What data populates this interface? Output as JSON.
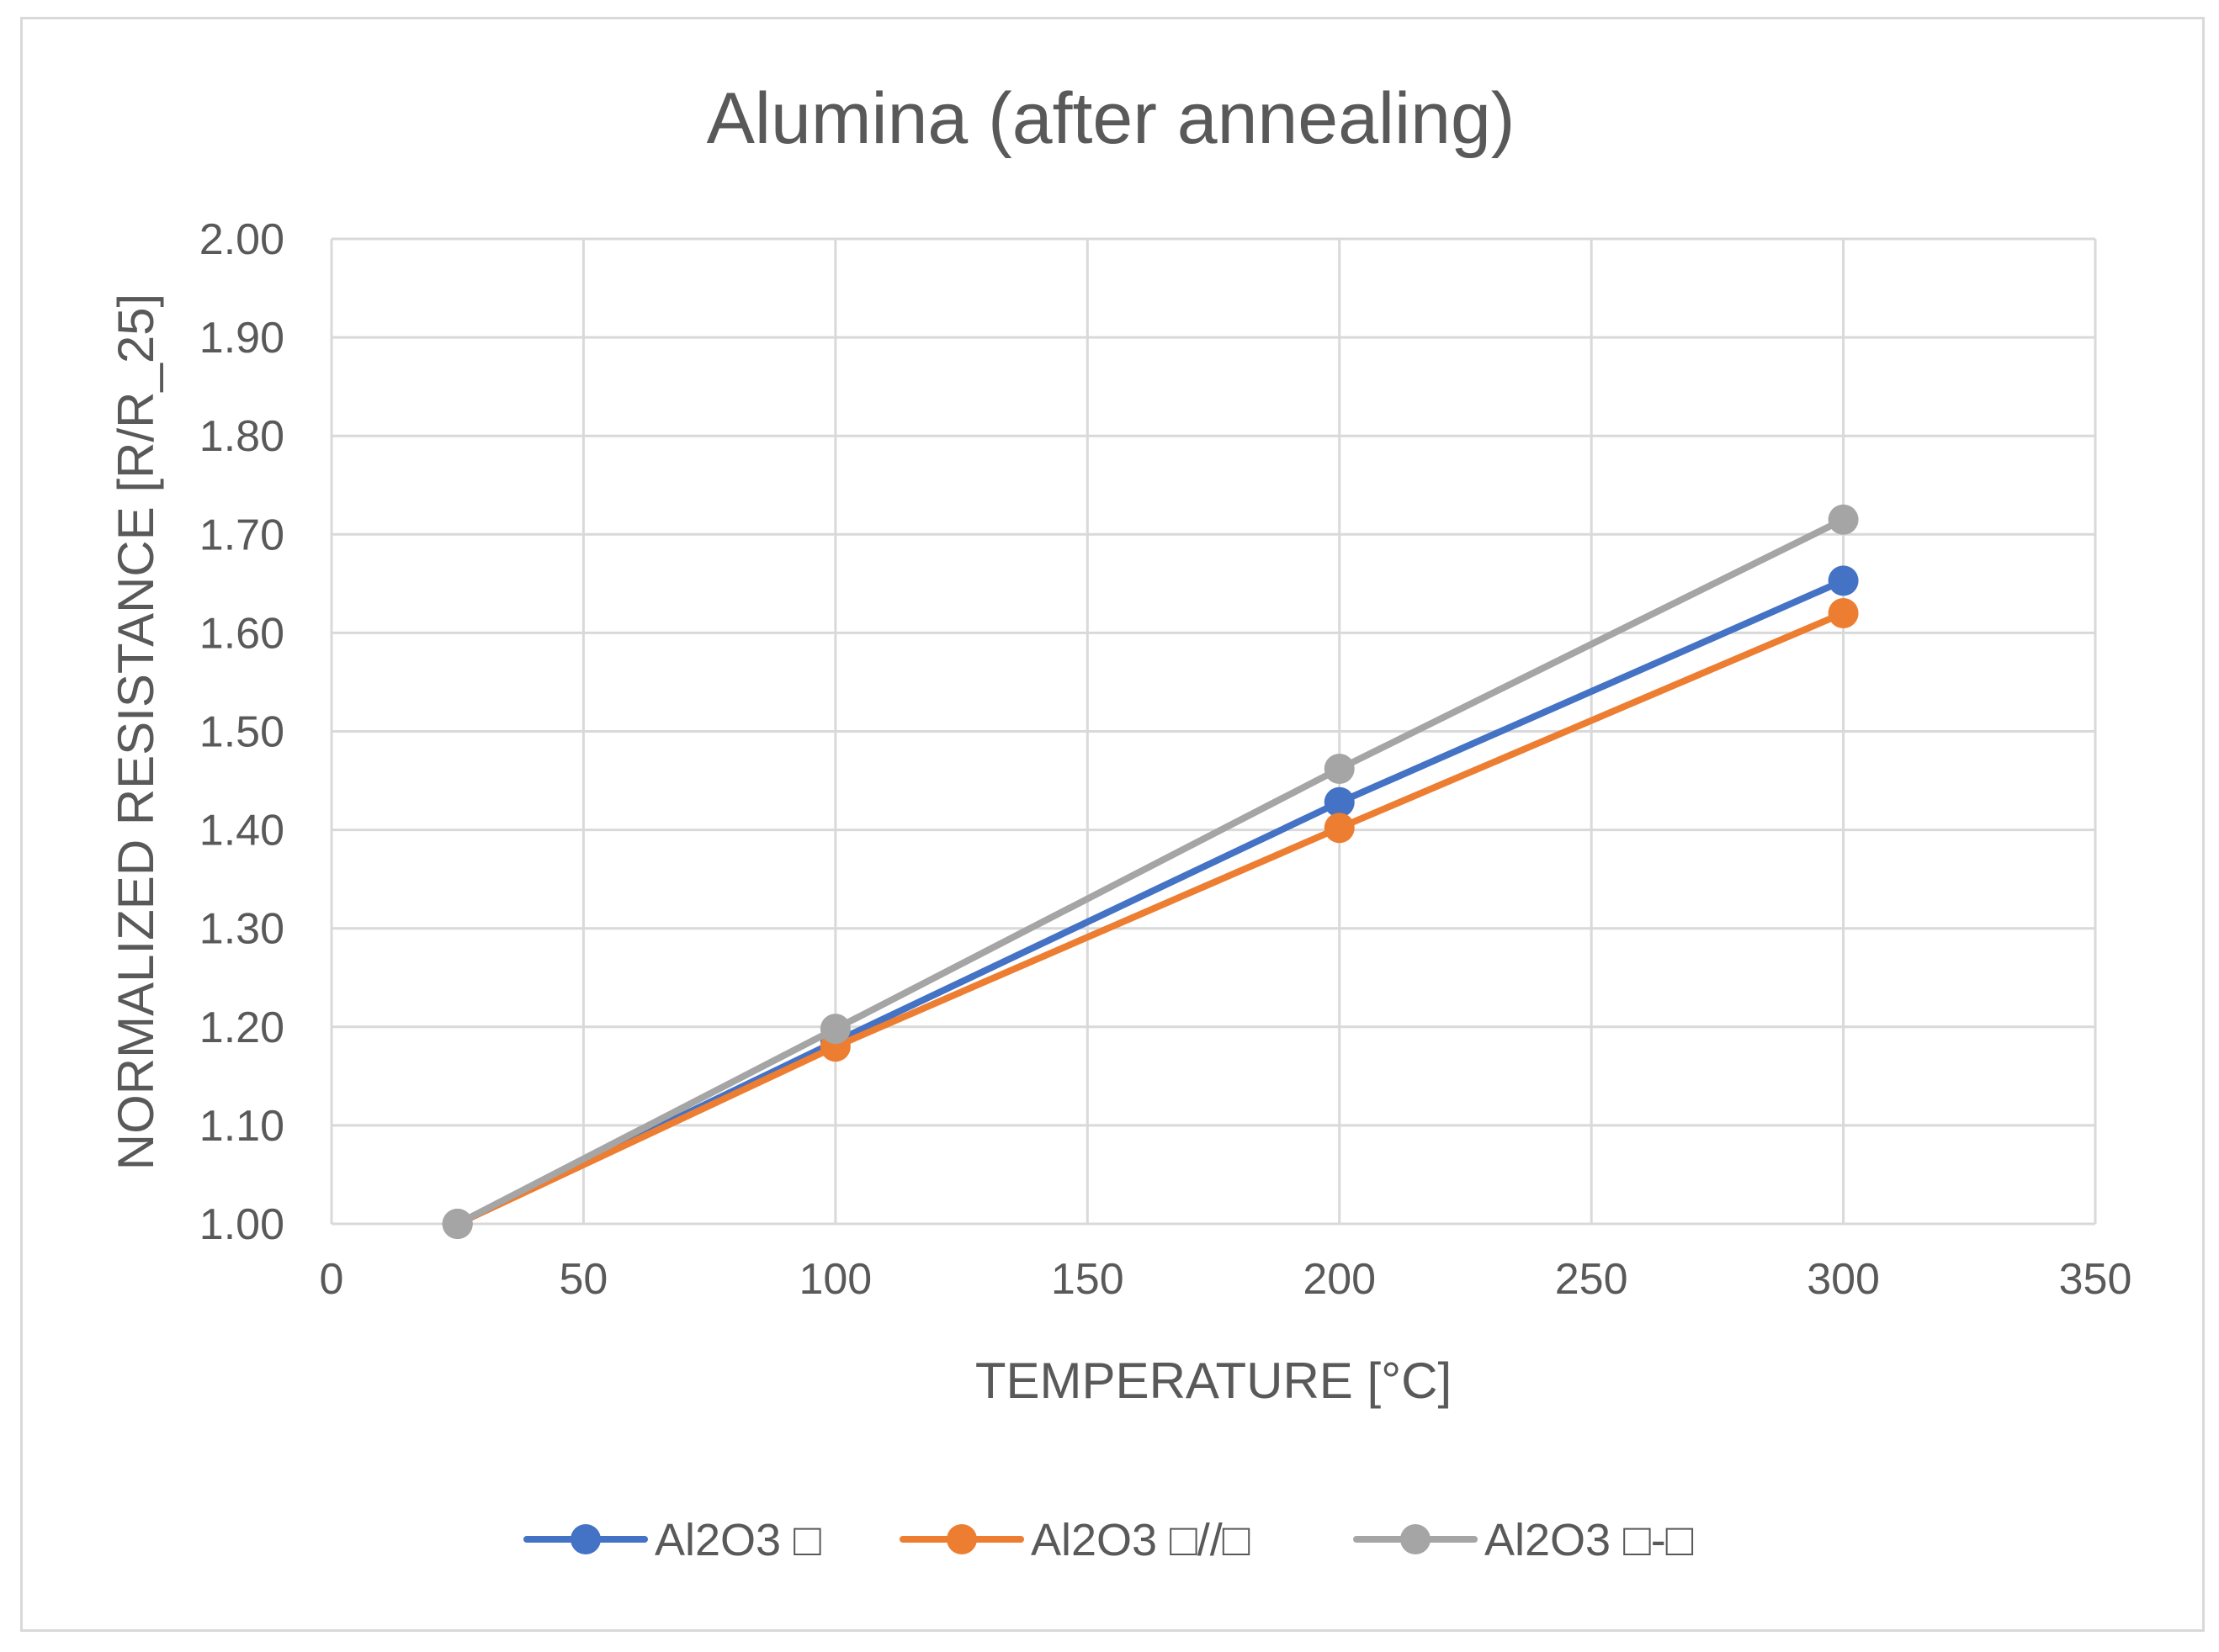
{
  "chart_data": {
    "type": "line",
    "title": "Alumina (after annealing)",
    "xlabel": "TEMPERATURE [°C]",
    "ylabel": "NORMALIZED RESISTANCE [R/R_25]",
    "xlim": [
      0,
      350
    ],
    "ylim": [
      1.0,
      2.0
    ],
    "xticks": [
      "0",
      "50",
      "100",
      "150",
      "200",
      "250",
      "300",
      "350"
    ],
    "yticks": [
      "1.00",
      "1.10",
      "1.20",
      "1.30",
      "1.40",
      "1.50",
      "1.60",
      "1.70",
      "1.80",
      "1.90",
      "2.00"
    ],
    "grid": true,
    "legend_position": "bottom",
    "x": [
      25,
      100,
      200,
      300
    ],
    "series": [
      {
        "name": "Al2O3 □",
        "color": "#4472c4",
        "values": [
          1.0,
          1.185,
          1.428,
          1.653
        ]
      },
      {
        "name": "Al2O3 □//□",
        "color": "#ed7d31",
        "values": [
          1.0,
          1.18,
          1.402,
          1.62
        ]
      },
      {
        "name": "Al2O3 □-□",
        "color": "#a5a5a5",
        "values": [
          1.0,
          1.198,
          1.462,
          1.715
        ]
      }
    ]
  }
}
